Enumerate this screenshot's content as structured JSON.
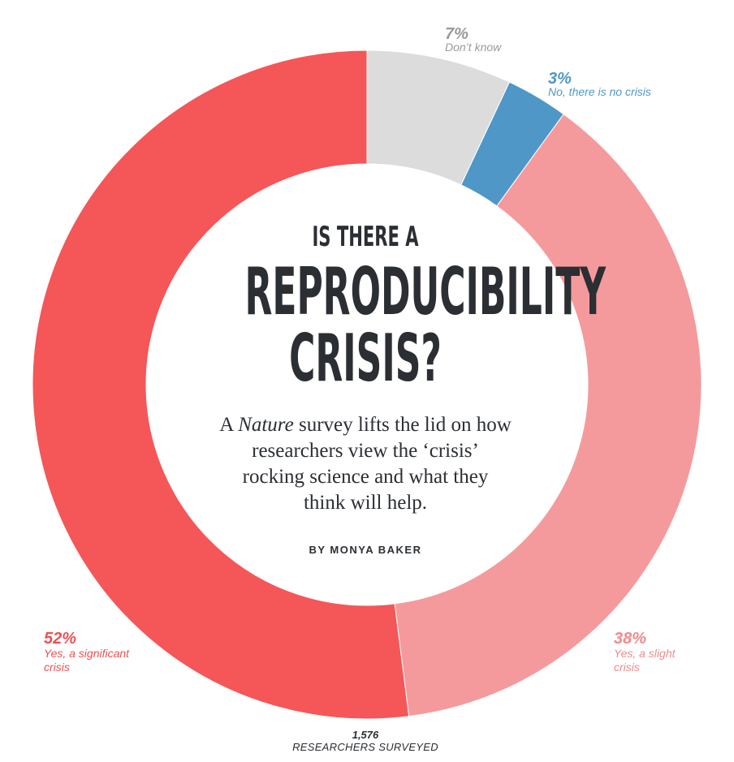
{
  "chart_data": {
    "type": "pie",
    "style": "donut",
    "title_line1": "IS THERE A",
    "title_line2": "REPRODUCIBILITY",
    "title_line3": "CRISIS?",
    "subtitle_pre": "A ",
    "subtitle_em": "Nature",
    "subtitle_post": " survey lifts the lid on how researchers view the ‘crisis’ rocking science and what they think will help.",
    "byline": "BY MONYA BAKER",
    "total_label_value": "1,576",
    "total_label_text": "RESEARCHERS SURVEYED",
    "slices": [
      {
        "name": "Don't know",
        "value": 7,
        "pct_label": "7%",
        "label": "Don’t know",
        "color": "#dcdcdc",
        "text_color": "#9a9a9a"
      },
      {
        "name": "No, there is no crisis",
        "value": 3,
        "pct_label": "3%",
        "label": "No, there is no crisis",
        "color": "#4f97c7",
        "text_color": "#4f97c7"
      },
      {
        "name": "Yes, a slight crisis",
        "value": 38,
        "pct_label": "38%",
        "label_line1": "Yes, a slight",
        "label_line2": "crisis",
        "color": "#f59a9c",
        "text_color": "#f08a8c"
      },
      {
        "name": "Yes, a significant crisis",
        "value": 52,
        "pct_label": "52%",
        "label_line1": "Yes, a significant",
        "label_line2": "crisis",
        "color": "#f55658",
        "text_color": "#ef5052"
      }
    ]
  }
}
